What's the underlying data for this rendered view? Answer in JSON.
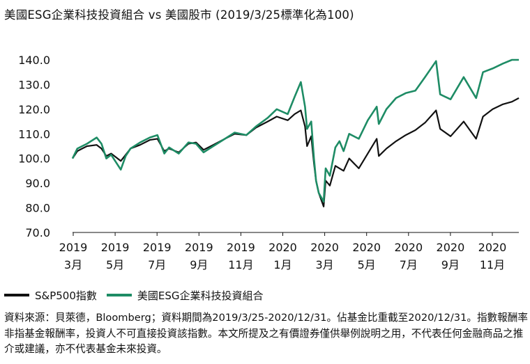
{
  "title": "美國ESG企業科技投資組合 vs 美國股市 (2019/3/25標準化為100)",
  "note": "資料來源：貝萊德，Bloomberg；資料期間為2019/3/25-2020/12/31。佔基金比重截至2020/12/31。指數報酬率非指基金報酬率，投資人不可直接投資該指數。本文所提及之有價證券僅供舉例說明之用，不代表任何金融商品之推介或建議，亦不代表基金未來投資。",
  "chart_data": {
    "type": "line",
    "ylim": [
      70,
      140
    ],
    "grid": false,
    "legend_position": "bottom-left",
    "yticks": [
      "140.0",
      "130.0",
      "120.0",
      "110.0",
      "100.0",
      "90.0",
      "80.0",
      "70.0"
    ],
    "xticks": [
      {
        "year": "2019",
        "month": "3月"
      },
      {
        "year": "2019",
        "month": "5月"
      },
      {
        "year": "2019",
        "month": "7月"
      },
      {
        "year": "2019",
        "month": "9月"
      },
      {
        "year": "2019",
        "month": "11月"
      },
      {
        "year": "2020",
        "month": "1月"
      },
      {
        "year": "2020",
        "month": "3月"
      },
      {
        "year": "2020",
        "month": "5月"
      },
      {
        "year": "2020",
        "month": "7月"
      },
      {
        "year": "2020",
        "month": "9月"
      },
      {
        "year": "2020",
        "month": "11月"
      }
    ],
    "x_start": "2019-03-25",
    "x_end": "2020-12-31",
    "series": [
      {
        "name": "S&P500指數",
        "color": "#111111",
        "points": [
          [
            "2019-03-25",
            100.0
          ],
          [
            "2019-04-01",
            103.0
          ],
          [
            "2019-04-08",
            104.0
          ],
          [
            "2019-04-15",
            105.0
          ],
          [
            "2019-04-29",
            105.5
          ],
          [
            "2019-05-06",
            104.0
          ],
          [
            "2019-05-13",
            101.0
          ],
          [
            "2019-05-20",
            102.0
          ],
          [
            "2019-06-03",
            99.0
          ],
          [
            "2019-06-10",
            101.5
          ],
          [
            "2019-06-17",
            104.0
          ],
          [
            "2019-07-01",
            105.5
          ],
          [
            "2019-07-15",
            107.5
          ],
          [
            "2019-07-26",
            108.0
          ],
          [
            "2019-08-05",
            103.0
          ],
          [
            "2019-08-12",
            104.0
          ],
          [
            "2019-08-26",
            102.5
          ],
          [
            "2019-09-09",
            106.0
          ],
          [
            "2019-09-20",
            106.5
          ],
          [
            "2019-10-01",
            103.5
          ],
          [
            "2019-10-15",
            105.5
          ],
          [
            "2019-11-01",
            108.0
          ],
          [
            "2019-11-15",
            110.0
          ],
          [
            "2019-12-02",
            109.5
          ],
          [
            "2019-12-16",
            112.5
          ],
          [
            "2020-01-02",
            115.0
          ],
          [
            "2020-01-15",
            117.0
          ],
          [
            "2020-01-31",
            115.5
          ],
          [
            "2020-02-10",
            118.0
          ],
          [
            "2020-02-19",
            119.5
          ],
          [
            "2020-02-25",
            113.0
          ],
          [
            "2020-02-28",
            105.0
          ],
          [
            "2020-03-05",
            109.0
          ],
          [
            "2020-03-09",
            98.0
          ],
          [
            "2020-03-12",
            91.0
          ],
          [
            "2020-03-16",
            86.0
          ],
          [
            "2020-03-23",
            80.5
          ],
          [
            "2020-03-26",
            91.0
          ],
          [
            "2020-04-01",
            89.0
          ],
          [
            "2020-04-09",
            97.0
          ],
          [
            "2020-04-15",
            96.0
          ],
          [
            "2020-04-21",
            95.0
          ],
          [
            "2020-04-29",
            100.0
          ],
          [
            "2020-05-13",
            96.0
          ],
          [
            "2020-05-26",
            102.0
          ],
          [
            "2020-06-08",
            108.0
          ],
          [
            "2020-06-11",
            101.0
          ],
          [
            "2020-06-22",
            104.0
          ],
          [
            "2020-07-06",
            107.0
          ],
          [
            "2020-07-20",
            109.5
          ],
          [
            "2020-08-03",
            111.5
          ],
          [
            "2020-08-17",
            114.5
          ],
          [
            "2020-09-02",
            119.5
          ],
          [
            "2020-09-08",
            112.0
          ],
          [
            "2020-09-23",
            109.0
          ],
          [
            "2020-10-12",
            115.0
          ],
          [
            "2020-10-30",
            108.0
          ],
          [
            "2020-11-09",
            117.0
          ],
          [
            "2020-11-23",
            120.0
          ],
          [
            "2020-12-08",
            122.0
          ],
          [
            "2020-12-21",
            123.0
          ],
          [
            "2020-12-31",
            124.5
          ]
        ]
      },
      {
        "name": "美國ESG企業科技投資組合",
        "color": "#1e8c65",
        "points": [
          [
            "2019-03-25",
            100.0
          ],
          [
            "2019-04-01",
            104.0
          ],
          [
            "2019-04-08",
            105.0
          ],
          [
            "2019-04-15",
            106.0
          ],
          [
            "2019-04-29",
            108.5
          ],
          [
            "2019-05-06",
            106.0
          ],
          [
            "2019-05-13",
            100.0
          ],
          [
            "2019-05-20",
            101.5
          ],
          [
            "2019-06-03",
            95.5
          ],
          [
            "2019-06-10",
            101.0
          ],
          [
            "2019-06-17",
            104.0
          ],
          [
            "2019-07-01",
            106.5
          ],
          [
            "2019-07-15",
            108.5
          ],
          [
            "2019-07-26",
            109.5
          ],
          [
            "2019-08-05",
            102.0
          ],
          [
            "2019-08-12",
            104.5
          ],
          [
            "2019-08-26",
            102.0
          ],
          [
            "2019-09-09",
            106.5
          ],
          [
            "2019-09-20",
            106.0
          ],
          [
            "2019-10-01",
            102.5
          ],
          [
            "2019-10-15",
            105.0
          ],
          [
            "2019-11-01",
            108.0
          ],
          [
            "2019-11-15",
            110.5
          ],
          [
            "2019-12-02",
            109.5
          ],
          [
            "2019-12-16",
            113.0
          ],
          [
            "2020-01-02",
            116.5
          ],
          [
            "2020-01-15",
            120.0
          ],
          [
            "2020-01-31",
            118.0
          ],
          [
            "2020-02-10",
            125.0
          ],
          [
            "2020-02-19",
            131.0
          ],
          [
            "2020-02-25",
            121.0
          ],
          [
            "2020-02-28",
            112.0
          ],
          [
            "2020-03-05",
            115.0
          ],
          [
            "2020-03-09",
            100.0
          ],
          [
            "2020-03-12",
            91.0
          ],
          [
            "2020-03-16",
            86.0
          ],
          [
            "2020-03-23",
            82.5
          ],
          [
            "2020-03-26",
            96.0
          ],
          [
            "2020-04-01",
            93.0
          ],
          [
            "2020-04-09",
            104.5
          ],
          [
            "2020-04-15",
            107.0
          ],
          [
            "2020-04-21",
            103.0
          ],
          [
            "2020-04-29",
            110.0
          ],
          [
            "2020-05-13",
            108.0
          ],
          [
            "2020-05-26",
            115.5
          ],
          [
            "2020-06-08",
            121.0
          ],
          [
            "2020-06-11",
            114.0
          ],
          [
            "2020-06-22",
            120.0
          ],
          [
            "2020-07-06",
            124.5
          ],
          [
            "2020-07-20",
            126.5
          ],
          [
            "2020-08-03",
            127.5
          ],
          [
            "2020-08-17",
            133.0
          ],
          [
            "2020-09-02",
            139.5
          ],
          [
            "2020-09-08",
            126.0
          ],
          [
            "2020-09-23",
            124.0
          ],
          [
            "2020-10-12",
            133.0
          ],
          [
            "2020-10-30",
            124.5
          ],
          [
            "2020-11-09",
            135.0
          ],
          [
            "2020-11-23",
            136.5
          ],
          [
            "2020-12-08",
            138.5
          ],
          [
            "2020-12-21",
            140.0
          ],
          [
            "2020-12-31",
            141.0
          ]
        ]
      }
    ]
  }
}
